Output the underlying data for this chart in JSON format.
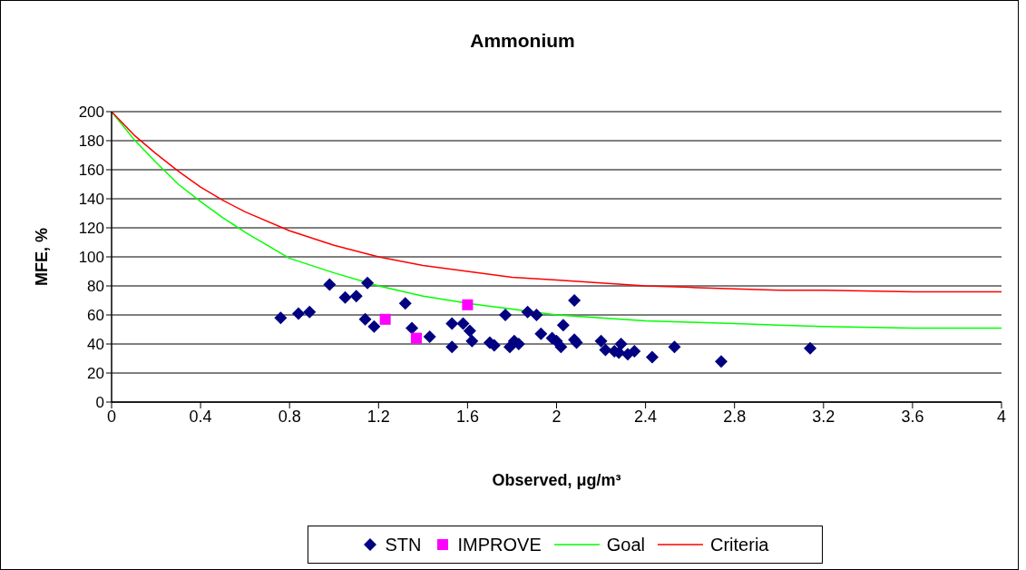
{
  "chart_data": {
    "type": "scatter",
    "title": "Ammonium",
    "xlabel": "Observed, μg/m³",
    "ylabel": "MFE, %",
    "xlim": [
      0,
      4
    ],
    "xticks": [
      0,
      0.4,
      0.8,
      1.2,
      1.6,
      2,
      2.4,
      2.8,
      3.2,
      3.6,
      4
    ],
    "ylim": [
      0,
      200
    ],
    "yticks": [
      0,
      20,
      40,
      60,
      80,
      100,
      120,
      140,
      160,
      180,
      200
    ],
    "grid": "y",
    "legend": "bottom",
    "series": [
      {
        "name": "STN",
        "marker": "diamond",
        "color": "#000080",
        "x": [
          0.76,
          0.84,
          0.89,
          0.98,
          1.05,
          1.1,
          1.14,
          1.15,
          1.18,
          1.32,
          1.35,
          1.43,
          1.53,
          1.53,
          1.58,
          1.61,
          1.62,
          1.7,
          1.72,
          1.77,
          1.79,
          1.81,
          1.83,
          1.87,
          1.91,
          1.93,
          1.98,
          2,
          2.02,
          2.03,
          2.08,
          2.08,
          2.09,
          2.2,
          2.22,
          2.26,
          2.28,
          2.29,
          2.32,
          2.35,
          2.43,
          2.53,
          2.74,
          3.14
        ],
        "values": [
          58,
          61,
          62,
          81,
          72,
          73,
          57,
          82,
          52,
          68,
          51,
          45,
          54,
          38,
          54,
          49,
          42,
          41,
          39,
          60,
          38,
          42,
          40,
          62,
          60,
          47,
          44,
          42,
          38,
          53,
          70,
          43,
          41,
          42,
          36,
          35,
          34,
          40,
          33,
          35,
          31,
          38,
          28,
          37
        ]
      },
      {
        "name": "IMPROVE",
        "marker": "square",
        "color": "#ff00ff",
        "x": [
          1.23,
          1.37,
          1.6
        ],
        "values": [
          57,
          44,
          67
        ]
      },
      {
        "name": "Goal",
        "type": "line",
        "marker": "none",
        "line_style": "solid",
        "color": "#00ff00",
        "x": [
          0,
          0.1,
          0.2,
          0.3,
          0.4,
          0.5,
          0.6,
          0.8,
          1,
          1.2,
          1.4,
          1.6,
          1.8,
          2,
          2.2,
          2.4,
          2.6,
          2.8,
          3,
          3.2,
          3.6,
          4
        ],
        "values": [
          200,
          181,
          165,
          150,
          138,
          127,
          117,
          99,
          89,
          80,
          73,
          68,
          64,
          60,
          58,
          56,
          55,
          54,
          53,
          52,
          51,
          51
        ]
      },
      {
        "name": "Criteria",
        "type": "line",
        "marker": "none",
        "line_style": "solid",
        "color": "#ff0000",
        "x": [
          0,
          0.1,
          0.2,
          0.3,
          0.4,
          0.5,
          0.6,
          0.8,
          1,
          1.2,
          1.4,
          1.6,
          1.8,
          2,
          2.2,
          2.4,
          2.6,
          2.8,
          3,
          3.2,
          3.6,
          4
        ],
        "values": [
          200,
          184,
          171,
          159,
          148,
          139,
          131,
          118,
          108,
          100,
          94,
          90,
          86,
          84,
          82,
          80,
          79,
          78,
          77,
          77,
          76,
          76
        ]
      }
    ]
  }
}
